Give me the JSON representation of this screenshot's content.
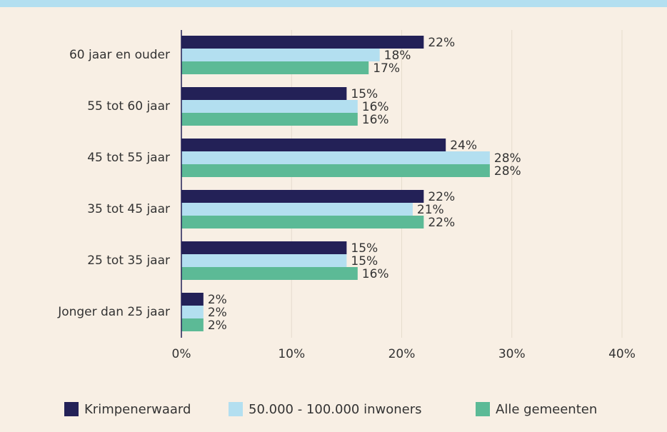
{
  "chart_data": {
    "type": "bar",
    "orientation": "horizontal",
    "categories": [
      "60 jaar en ouder",
      "55 tot 60 jaar",
      "45 tot 55 jaar",
      "35 tot 45 jaar",
      "25 tot 35 jaar",
      "Jonger dan 25 jaar"
    ],
    "series": [
      {
        "name": "Krimpenerwaard",
        "color": "#232157",
        "values": [
          22,
          15,
          24,
          22,
          15,
          2
        ],
        "value_labels": [
          "22%",
          "15%",
          "24%",
          "22%",
          "15%",
          "2%"
        ]
      },
      {
        "name": "50.000 - 100.000 inwoners",
        "color": "#b3dff0",
        "values": [
          18,
          16,
          28,
          21,
          15,
          2
        ],
        "value_labels": [
          "18%",
          "16%",
          "28%",
          "21%",
          "15%",
          "2%"
        ]
      },
      {
        "name": "Alle gemeenten",
        "color": "#5cba96",
        "values": [
          17,
          16,
          28,
          22,
          16,
          2
        ],
        "value_labels": [
          "17%",
          "16%",
          "28%",
          "22%",
          "16%",
          "2%"
        ]
      }
    ],
    "xlim": [
      0,
      40
    ],
    "xticks": [
      {
        "value": 0,
        "label": "0%"
      },
      {
        "value": 10,
        "label": "10%"
      },
      {
        "value": 20,
        "label": "20%"
      },
      {
        "value": 30,
        "label": "30%"
      },
      {
        "value": 40,
        "label": "40%"
      }
    ],
    "grid": true,
    "legend": "bottom"
  }
}
